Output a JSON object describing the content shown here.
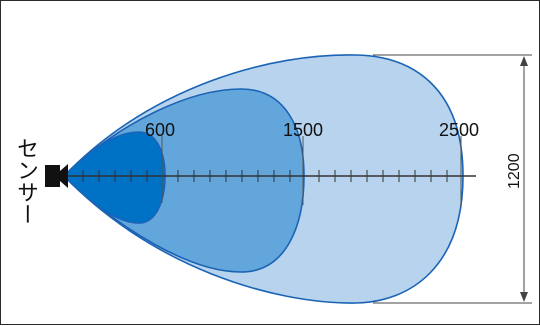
{
  "sensor": {
    "label": "センサー",
    "icon": "sensor-icon"
  },
  "zones": [
    {
      "id": "zone-600",
      "distance_label": "600",
      "color": "#0072c6"
    },
    {
      "id": "zone-1500",
      "distance_label": "1500",
      "color": "#62a6dc"
    },
    {
      "id": "zone-2500",
      "distance_label": "2500",
      "color": "#b7d3ee"
    }
  ],
  "width": {
    "label": "1200"
  },
  "colors": {
    "outline": "#1b64b5",
    "axis": "#333333",
    "dimension": "#444444"
  }
}
